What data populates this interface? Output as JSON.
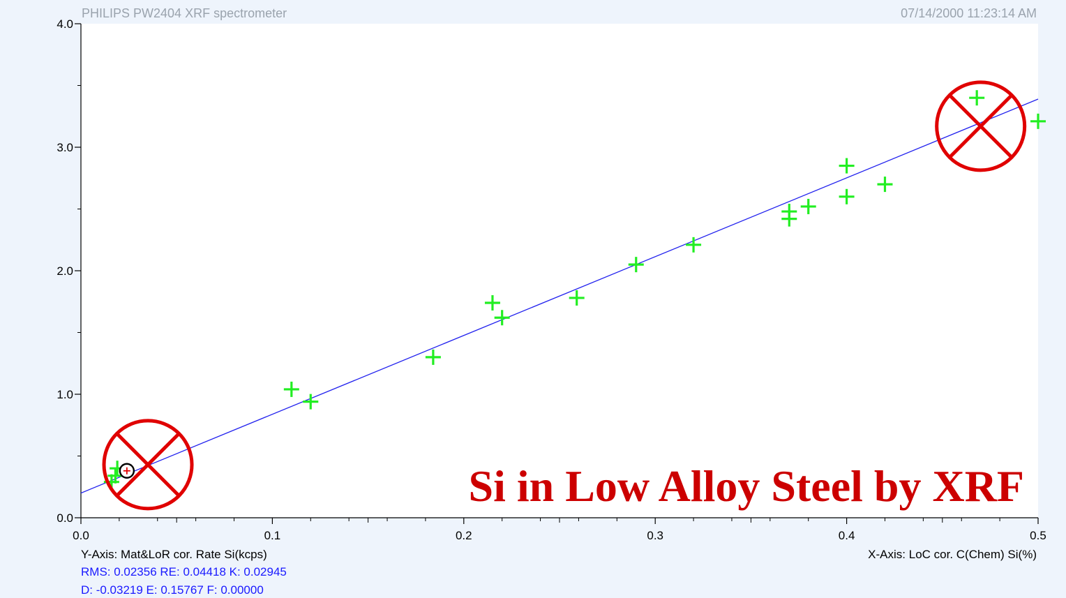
{
  "header": {
    "instrument": "PHILIPS PW2404 XRF spectrometer",
    "timestamp": "07/14/2000 11:23:14 AM"
  },
  "footer": {
    "y_axis_label": "Y-Axis: Mat&LoR cor. Rate Si(kcps)",
    "x_axis_label": "X-Axis: LoC cor. C(Chem) Si(%)",
    "stats_line1": "RMS: 0.02356  RE: 0.04418  K: 0.02945",
    "stats_line2": "D: -0.03219  E: 0.15767  F: 0.00000"
  },
  "colors": {
    "background": "#eef4fc",
    "plot_background": "#ffffff",
    "points": "#22ee22",
    "fit_line": "#2222ee",
    "rejected_marker": "#e00000",
    "title": "#cc0000"
  },
  "chart_data": {
    "type": "scatter",
    "title": "Si in Low Alloy Steel by XRF",
    "xlim": [
      0,
      0.5
    ],
    "ylim": [
      0,
      4.0
    ],
    "x_ticks": [
      0.0,
      0.1,
      0.2,
      0.3,
      0.4,
      0.5
    ],
    "x_tick_labels": [
      "0.0",
      "0.1",
      "0.2",
      "0.3",
      "0.4",
      "0.5"
    ],
    "y_ticks": [
      0.0,
      1.0,
      2.0,
      3.0,
      4.0
    ],
    "y_tick_labels": [
      "0.0",
      "1.0",
      "2.0",
      "3.0",
      "4.0"
    ],
    "grid": false,
    "points": [
      {
        "x": 0.016,
        "y": 0.29
      },
      {
        "x": 0.018,
        "y": 0.34
      },
      {
        "x": 0.019,
        "y": 0.4
      },
      {
        "x": 0.11,
        "y": 1.04
      },
      {
        "x": 0.12,
        "y": 0.94
      },
      {
        "x": 0.184,
        "y": 1.3
      },
      {
        "x": 0.215,
        "y": 1.74
      },
      {
        "x": 0.22,
        "y": 1.62
      },
      {
        "x": 0.259,
        "y": 1.78
      },
      {
        "x": 0.29,
        "y": 2.05
      },
      {
        "x": 0.32,
        "y": 2.21
      },
      {
        "x": 0.37,
        "y": 2.48
      },
      {
        "x": 0.37,
        "y": 2.42
      },
      {
        "x": 0.38,
        "y": 2.52
      },
      {
        "x": 0.4,
        "y": 2.85
      },
      {
        "x": 0.4,
        "y": 2.6
      },
      {
        "x": 0.42,
        "y": 2.7
      },
      {
        "x": 0.468,
        "y": 3.4
      },
      {
        "x": 0.5,
        "y": 3.21
      }
    ],
    "highlighted_point": {
      "x": 0.024,
      "y": 0.38
    },
    "fit_line": {
      "x": [
        0.0,
        0.5
      ],
      "y": [
        0.2,
        3.39
      ]
    },
    "rejected_markers": [
      {
        "x": 0.035,
        "y": 0.43
      },
      {
        "x": 0.47,
        "y": 3.17
      }
    ]
  }
}
